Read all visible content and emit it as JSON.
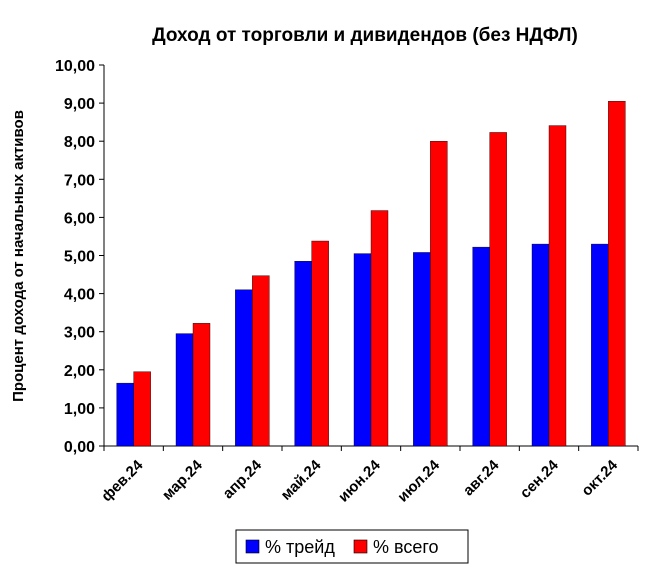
{
  "chart_data": {
    "type": "bar",
    "title": "Доход от торговли и дивидендов (без НДФЛ)",
    "xlabel": "",
    "ylabel": "Процент дохода от начальных активов",
    "ylim": [
      0,
      10
    ],
    "yticks": [
      "0,00",
      "1,00",
      "2,00",
      "3,00",
      "4,00",
      "5,00",
      "6,00",
      "7,00",
      "8,00",
      "9,00",
      "10,00"
    ],
    "grid": false,
    "legend_position": "bottom",
    "categories": [
      "фев.24",
      "мар.24",
      "апр.24",
      "май.24",
      "июн.24",
      "июл.24",
      "авг.24",
      "сен.24",
      "окт.24"
    ],
    "series": [
      {
        "name": "% трейд",
        "color": "#0000FF",
        "values": [
          1.65,
          2.95,
          4.1,
          4.85,
          5.05,
          5.08,
          5.22,
          5.3,
          5.3
        ]
      },
      {
        "name": "% всего",
        "color": "#FF0000",
        "values": [
          1.95,
          3.22,
          4.47,
          5.38,
          6.18,
          8.0,
          8.23,
          8.41,
          9.05
        ]
      }
    ]
  }
}
